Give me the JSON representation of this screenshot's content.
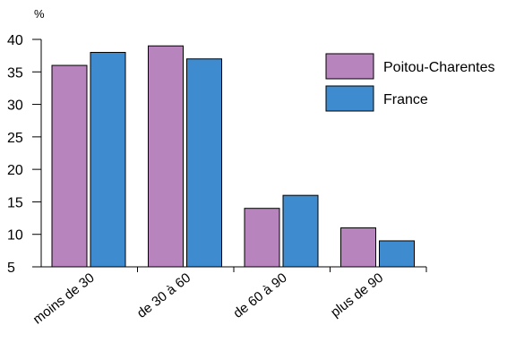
{
  "chart_data": {
    "type": "bar",
    "unit_label": "%",
    "categories": [
      "moins de 30",
      "de 30 à 60",
      "de 60 à 90",
      "plus de 90"
    ],
    "series": [
      {
        "name": "Poitou-Charentes",
        "color": "#b784be",
        "values": [
          36,
          39,
          14,
          11
        ]
      },
      {
        "name": "France",
        "color": "#3f8bd0",
        "values": [
          38,
          37,
          16,
          9
        ]
      }
    ],
    "ylim": [
      5,
      40
    ],
    "yticks": [
      5,
      10,
      15,
      20,
      25,
      30,
      35,
      40
    ],
    "grid": false,
    "legend_position": "top-right"
  }
}
